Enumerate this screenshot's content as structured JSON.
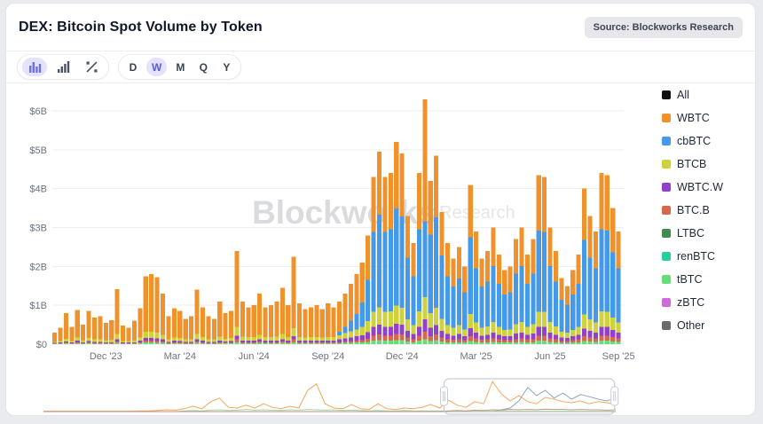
{
  "header": {
    "title": "DEX: Bitcoin Spot Volume by Token",
    "source_badge": "Source: Blockworks Research"
  },
  "toolbar": {
    "chart_type_icons": [
      "stacked-bar-view",
      "bar-view",
      "percent-view"
    ],
    "active_icon": "stacked-bar-view",
    "periods": [
      "D",
      "W",
      "M",
      "Q",
      "Y"
    ],
    "active_period": "W"
  },
  "watermark": {
    "brand": "Blockworks",
    "label": "Research"
  },
  "legend": [
    {
      "label": "All",
      "color": "#111111"
    },
    {
      "label": "WBTC",
      "color": "#F0922B"
    },
    {
      "label": "cbBTC",
      "color": "#4499E8"
    },
    {
      "label": "BTCB",
      "color": "#CFD23C"
    },
    {
      "label": "WBTC.W",
      "color": "#9440C9"
    },
    {
      "label": "BTC.B",
      "color": "#D6694D"
    },
    {
      "label": "LTBC",
      "color": "#418A50"
    },
    {
      "label": "renBTC",
      "color": "#26CE9E"
    },
    {
      "label": "tBTC",
      "color": "#66DE77"
    },
    {
      "label": "zBTC",
      "color": "#CB6CD9"
    },
    {
      "label": "Other",
      "color": "#6B6B6B"
    }
  ],
  "chart_data": {
    "type": "bar",
    "subtype": "stacked-weekly",
    "title": "DEX: Bitcoin Spot Volume by Token",
    "unit": "USD billions",
    "ylabel": "",
    "xlabel": "",
    "ylim": [
      0,
      6.5
    ],
    "grid": true,
    "legend_position": "right",
    "y_ticks": [
      "$0",
      "$1B",
      "$2B",
      "$3B",
      "$4B",
      "$5B",
      "$6B"
    ],
    "x_ticks": [
      {
        "index": 9,
        "label": "Dec '23"
      },
      {
        "index": 22,
        "label": "Mar '24"
      },
      {
        "index": 35,
        "label": "Jun '24"
      },
      {
        "index": 48,
        "label": "Sep '24"
      },
      {
        "index": 61,
        "label": "Dec '24"
      },
      {
        "index": 74,
        "label": "Mar '25"
      },
      {
        "index": 87,
        "label": "Jun '25"
      },
      {
        "index": 99,
        "label": "Sep '25"
      }
    ],
    "stack_order": [
      "tBTC",
      "BTC.B",
      "WBTC.W",
      "BTCB",
      "cbBTC",
      "WBTC"
    ],
    "series": {
      "tBTC": {
        "color": "#66DE77",
        "values": [
          0.01,
          0.01,
          0.02,
          0.01,
          0.02,
          0.01,
          0.02,
          0.01,
          0.01,
          0.01,
          0.01,
          0.03,
          0.01,
          0.01,
          0.01,
          0.02,
          0.04,
          0.04,
          0.03,
          0.03,
          0.01,
          0.02,
          0.02,
          0.01,
          0.01,
          0.03,
          0.02,
          0.01,
          0.01,
          0.02,
          0.02,
          0.02,
          0.05,
          0.02,
          0.02,
          0.02,
          0.03,
          0.02,
          0.02,
          0.02,
          0.03,
          0.02,
          0.05,
          0.02,
          0.02,
          0.02,
          0.02,
          0.02,
          0.02,
          0.02,
          0.02,
          0.03,
          0.03,
          0.04,
          0.04,
          0.06,
          0.09,
          0.1,
          0.09,
          0.09,
          0.1,
          0.1,
          0.07,
          0.05,
          0.09,
          0.13,
          0.08,
          0.1,
          0.07,
          0.05,
          0.04,
          0.05,
          0.04,
          0.08,
          0.06,
          0.04,
          0.05,
          0.06,
          0.05,
          0.04,
          0.04,
          0.05,
          0.06,
          0.05,
          0.05,
          0.09,
          0.09,
          0.06,
          0.05,
          0.03,
          0.03,
          0.04,
          0.05,
          0.08,
          0.07,
          0.06,
          0.09,
          0.09,
          0.07,
          0.06
        ]
      },
      "BTC.B": {
        "color": "#D6694D",
        "values": [
          0.01,
          0.01,
          0.02,
          0.01,
          0.03,
          0.02,
          0.03,
          0.02,
          0.02,
          0.02,
          0.02,
          0.04,
          0.01,
          0.01,
          0.02,
          0.03,
          0.05,
          0.05,
          0.05,
          0.04,
          0.02,
          0.03,
          0.03,
          0.02,
          0.02,
          0.04,
          0.03,
          0.02,
          0.02,
          0.03,
          0.02,
          0.03,
          0.07,
          0.03,
          0.03,
          0.03,
          0.04,
          0.03,
          0.03,
          0.03,
          0.04,
          0.03,
          0.07,
          0.03,
          0.03,
          0.03,
          0.03,
          0.03,
          0.03,
          0.03,
          0.03,
          0.04,
          0.05,
          0.05,
          0.06,
          0.08,
          0.13,
          0.15,
          0.13,
          0.13,
          0.16,
          0.15,
          0.1,
          0.08,
          0.13,
          0.19,
          0.13,
          0.15,
          0.1,
          0.08,
          0.07,
          0.08,
          0.06,
          0.12,
          0.09,
          0.07,
          0.07,
          0.09,
          0.07,
          0.06,
          0.06,
          0.08,
          0.09,
          0.07,
          0.08,
          0.13,
          0.13,
          0.09,
          0.07,
          0.05,
          0.05,
          0.06,
          0.07,
          0.12,
          0.1,
          0.09,
          0.13,
          0.13,
          0.11,
          0.09
        ]
      },
      "WBTC.W": {
        "color": "#9440C9",
        "values": [
          0.01,
          0.02,
          0.03,
          0.02,
          0.04,
          0.02,
          0.03,
          0.03,
          0.03,
          0.02,
          0.02,
          0.06,
          0.02,
          0.02,
          0.02,
          0.04,
          0.07,
          0.07,
          0.07,
          0.05,
          0.03,
          0.04,
          0.03,
          0.03,
          0.03,
          0.06,
          0.04,
          0.03,
          0.03,
          0.04,
          0.03,
          0.03,
          0.1,
          0.04,
          0.04,
          0.04,
          0.05,
          0.04,
          0.04,
          0.04,
          0.06,
          0.04,
          0.09,
          0.04,
          0.04,
          0.04,
          0.04,
          0.04,
          0.04,
          0.04,
          0.07,
          0.08,
          0.09,
          0.11,
          0.13,
          0.17,
          0.22,
          0.25,
          0.22,
          0.22,
          0.26,
          0.25,
          0.17,
          0.13,
          0.22,
          0.32,
          0.21,
          0.24,
          0.17,
          0.13,
          0.11,
          0.13,
          0.1,
          0.21,
          0.15,
          0.11,
          0.12,
          0.15,
          0.12,
          0.1,
          0.1,
          0.14,
          0.15,
          0.12,
          0.14,
          0.22,
          0.22,
          0.15,
          0.12,
          0.09,
          0.08,
          0.1,
          0.12,
          0.2,
          0.17,
          0.15,
          0.22,
          0.22,
          0.18,
          0.15
        ]
      },
      "BTCB": {
        "color": "#CFD23C",
        "values": [
          0.03,
          0.04,
          0.07,
          0.04,
          0.08,
          0.05,
          0.08,
          0.06,
          0.06,
          0.05,
          0.06,
          0.13,
          0.04,
          0.04,
          0.05,
          0.08,
          0.16,
          0.16,
          0.15,
          0.12,
          0.06,
          0.08,
          0.08,
          0.06,
          0.06,
          0.13,
          0.09,
          0.06,
          0.06,
          0.1,
          0.07,
          0.08,
          0.22,
          0.1,
          0.09,
          0.09,
          0.12,
          0.09,
          0.09,
          0.1,
          0.13,
          0.09,
          0.2,
          0.09,
          0.08,
          0.09,
          0.09,
          0.08,
          0.09,
          0.09,
          0.11,
          0.13,
          0.16,
          0.18,
          0.21,
          0.28,
          0.39,
          0.45,
          0.39,
          0.4,
          0.47,
          0.44,
          0.3,
          0.23,
          0.4,
          0.57,
          0.38,
          0.44,
          0.31,
          0.23,
          0.2,
          0.23,
          0.18,
          0.37,
          0.26,
          0.2,
          0.22,
          0.27,
          0.21,
          0.17,
          0.18,
          0.24,
          0.27,
          0.21,
          0.24,
          0.39,
          0.39,
          0.27,
          0.22,
          0.15,
          0.14,
          0.17,
          0.21,
          0.36,
          0.3,
          0.26,
          0.4,
          0.39,
          0.32,
          0.26
        ]
      },
      "cbBTC": {
        "color": "#4499E8",
        "values": [
          0,
          0,
          0,
          0,
          0,
          0,
          0,
          0,
          0,
          0,
          0,
          0,
          0,
          0,
          0,
          0,
          0,
          0,
          0,
          0,
          0,
          0,
          0,
          0,
          0,
          0,
          0,
          0,
          0,
          0,
          0,
          0,
          0,
          0,
          0,
          0,
          0,
          0,
          0,
          0,
          0,
          0,
          0,
          0,
          0,
          0,
          0,
          0,
          0,
          0,
          0.09,
          0.16,
          0.28,
          0.4,
          0.63,
          1.06,
          2.06,
          2.38,
          2.06,
          2.11,
          2.5,
          2.35,
          1.58,
          1.25,
          2.11,
          1.95,
          2.02,
          2.33,
          1.63,
          1.25,
          1.06,
          1.2,
          0.96,
          1.97,
          1.39,
          1.06,
          1.15,
          1.44,
          1.1,
          0.91,
          0.96,
          1.3,
          1.44,
          1.1,
          1.3,
          2.09,
          2.06,
          1.44,
          1.15,
          0.82,
          0.72,
          0.91,
          1.1,
          1.92,
          1.58,
          1.39,
          2.11,
          2.09,
          1.68,
          1.39
        ]
      },
      "WBTC": {
        "color": "#F0922B",
        "values": [
          0.24,
          0.34,
          0.66,
          0.37,
          0.71,
          0.4,
          0.69,
          0.56,
          0.6,
          0.45,
          0.51,
          1.16,
          0.4,
          0.34,
          0.5,
          0.75,
          1.43,
          1.48,
          1.42,
          1.06,
          0.6,
          0.75,
          0.69,
          0.53,
          0.6,
          1.14,
          0.77,
          0.6,
          0.53,
          0.91,
          0.66,
          0.69,
          1.96,
          0.91,
          0.77,
          0.82,
          1.06,
          0.77,
          0.82,
          0.91,
          1.19,
          0.82,
          1.84,
          0.87,
          0.73,
          0.77,
          0.82,
          0.73,
          0.87,
          0.77,
          0.78,
          0.86,
          0.94,
          1.02,
          1.03,
          1.15,
          1.41,
          1.62,
          1.41,
          1.45,
          1.71,
          1.61,
          1.08,
          0.86,
          1.45,
          3.14,
          1.38,
          1.59,
          1.12,
          0.86,
          0.72,
          0.81,
          0.66,
          1.35,
          0.95,
          0.72,
          0.79,
          0.99,
          0.75,
          0.62,
          0.66,
          0.89,
          0.99,
          0.75,
          0.89,
          1.43,
          1.41,
          0.99,
          0.79,
          0.56,
          0.48,
          0.62,
          0.75,
          1.32,
          1.08,
          0.95,
          1.45,
          1.43,
          1.14,
          0.95
        ]
      }
    },
    "navigator": {
      "brush": {
        "start_frac": 0.7,
        "end_frac": 0.998
      },
      "lines": [
        {
          "name": "WBTC",
          "color": "#F3A65A",
          "values": [
            0.01,
            0.01,
            0.01,
            0.01,
            0.01,
            0.01,
            0.01,
            0.01,
            0.01,
            0.01,
            0.01,
            0.02,
            0.02,
            0.03,
            0.05,
            0.04,
            0.08,
            0.15,
            0.08,
            0.28,
            0.38,
            0.12,
            0.1,
            0.18,
            0.1,
            0.22,
            0.12,
            0.08,
            0.15,
            0.1,
            0.6,
            0.78,
            0.22,
            0.1,
            0.08,
            0.2,
            0.08,
            0.06,
            0.22,
            0.08,
            0.06,
            0.1,
            0.08,
            0.12,
            0.2,
            0.1,
            0.32,
            0.18,
            0.12,
            0.28,
            0.22,
            0.85,
            0.5,
            0.3,
            0.45,
            0.28,
            0.22,
            0.4,
            0.35,
            0.28,
            0.25,
            0.3,
            0.22,
            0.28,
            0.25,
            0.2
          ]
        },
        {
          "name": "cbBTC",
          "color": "#8CA3BC",
          "values": [
            0,
            0,
            0,
            0,
            0,
            0,
            0,
            0,
            0,
            0,
            0,
            0,
            0,
            0,
            0,
            0,
            0,
            0,
            0,
            0,
            0,
            0,
            0,
            0,
            0,
            0,
            0,
            0,
            0,
            0,
            0,
            0,
            0,
            0,
            0,
            0,
            0,
            0,
            0,
            0,
            0,
            0,
            0,
            0,
            0,
            0,
            0,
            0,
            0,
            0,
            0,
            0,
            0.05,
            0.1,
            0.3,
            0.68,
            0.45,
            0.6,
            0.38,
            0.52,
            0.35,
            0.48,
            0.42,
            0.35,
            0.3,
            0.38
          ]
        },
        {
          "name": "renBTC",
          "color": "#9AD9A8",
          "values": [
            0,
            0,
            0,
            0,
            0,
            0,
            0,
            0,
            0,
            0,
            0,
            0,
            0,
            0,
            0,
            0,
            0.02,
            0.03,
            0.02,
            0.04,
            0.05,
            0.03,
            0.04,
            0.06,
            0.04,
            0.05,
            0.04,
            0.03,
            0.05,
            0.04,
            0.06,
            0.05,
            0.04,
            0.05,
            0.03,
            0.04,
            0.03,
            0.02,
            0.03,
            0.02,
            0.02,
            0.03,
            0.02,
            0.02,
            0.02,
            0.02,
            0.01,
            0.01,
            0.01,
            0.01,
            0.01,
            0.01,
            0.01,
            0.01,
            0.01,
            0.01,
            0.01,
            0.01,
            0.01,
            0.01,
            0.01,
            0.01,
            0.01,
            0.01,
            0.01,
            0.01
          ]
        },
        {
          "name": "BTC.B",
          "color": "#C98A77",
          "values": [
            0,
            0,
            0,
            0,
            0,
            0,
            0,
            0,
            0,
            0,
            0,
            0,
            0,
            0,
            0,
            0,
            0,
            0,
            0,
            0,
            0,
            0,
            0,
            0,
            0,
            0,
            0,
            0,
            0,
            0,
            0,
            0,
            0,
            0,
            0,
            0,
            0,
            0,
            0,
            0,
            0,
            0,
            0,
            0,
            0,
            0,
            0.02,
            0.03,
            0.02,
            0.04,
            0.03,
            0.05,
            0.04,
            0.06,
            0.05,
            0.06,
            0.05,
            0.07,
            0.06,
            0.06,
            0.05,
            0.06,
            0.05,
            0.05,
            0.04,
            0.05
          ]
        }
      ]
    }
  }
}
